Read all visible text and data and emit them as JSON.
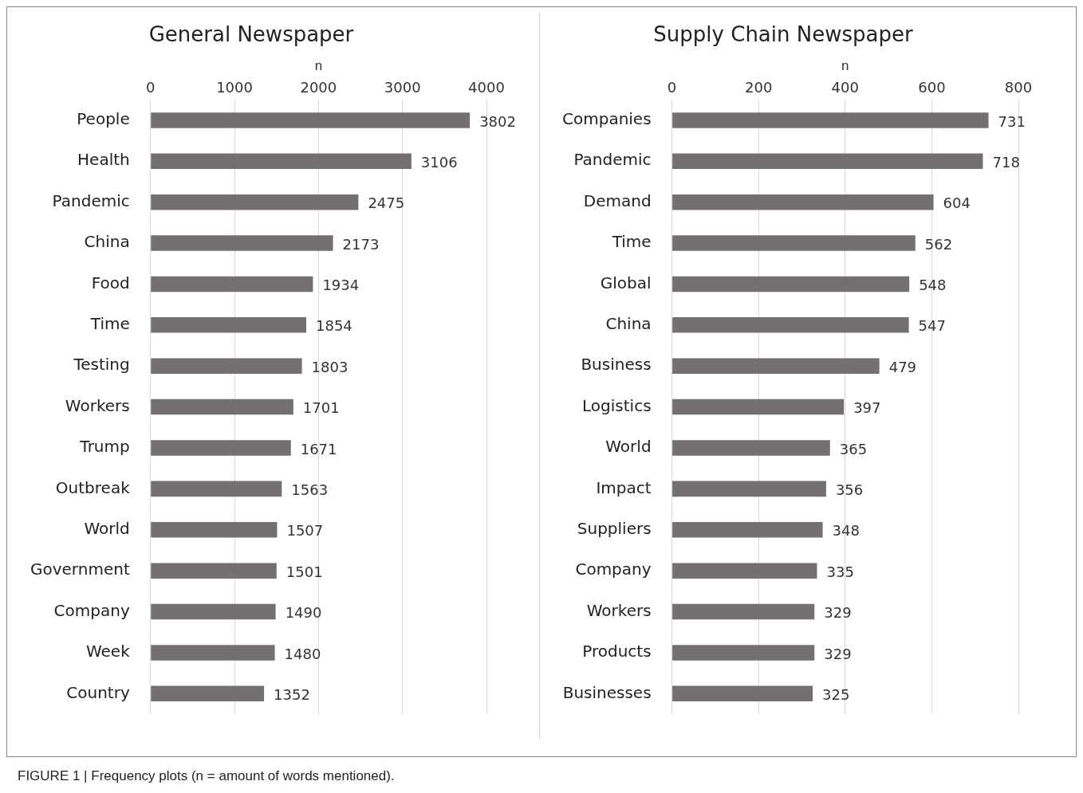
{
  "chart_data": [
    {
      "type": "bar",
      "orientation": "horizontal",
      "title": "General Newspaper",
      "xlabel": "n",
      "categories": [
        "People",
        "Health",
        "Pandemic",
        "China",
        "Food",
        "Time",
        "Testing",
        "Workers",
        "Trump",
        "Outbreak",
        "World",
        "Government",
        "Company",
        "Week",
        "Country"
      ],
      "values": [
        3802,
        3106,
        2475,
        2173,
        1934,
        1854,
        1803,
        1701,
        1671,
        1563,
        1507,
        1501,
        1490,
        1480,
        1352
      ],
      "color": "#747070",
      "xlim": [
        0,
        4000
      ],
      "xticks": [
        0,
        1000,
        2000,
        3000,
        4000
      ],
      "grid": "x",
      "data_labels": true,
      "annotations": [
        "FIGURE 1 | Frequency plots (n = amount of words mentioned)."
      ]
    },
    {
      "type": "bar",
      "orientation": "horizontal",
      "title": "Supply Chain Newspaper",
      "xlabel": "n",
      "categories": [
        "Companies",
        "Pandemic",
        "Demand",
        "Time",
        "Global",
        "China",
        "Business",
        "Logistics",
        "World",
        "Impact",
        "Suppliers",
        "Company",
        "Workers",
        "Products",
        "Businesses"
      ],
      "values": [
        731,
        718,
        604,
        562,
        548,
        547,
        479,
        397,
        365,
        356,
        348,
        335,
        329,
        329,
        325
      ],
      "color": "#747070",
      "xlim": [
        0,
        800
      ],
      "xticks": [
        0,
        200,
        400,
        600,
        800
      ],
      "grid": "x",
      "data_labels": true
    }
  ]
}
